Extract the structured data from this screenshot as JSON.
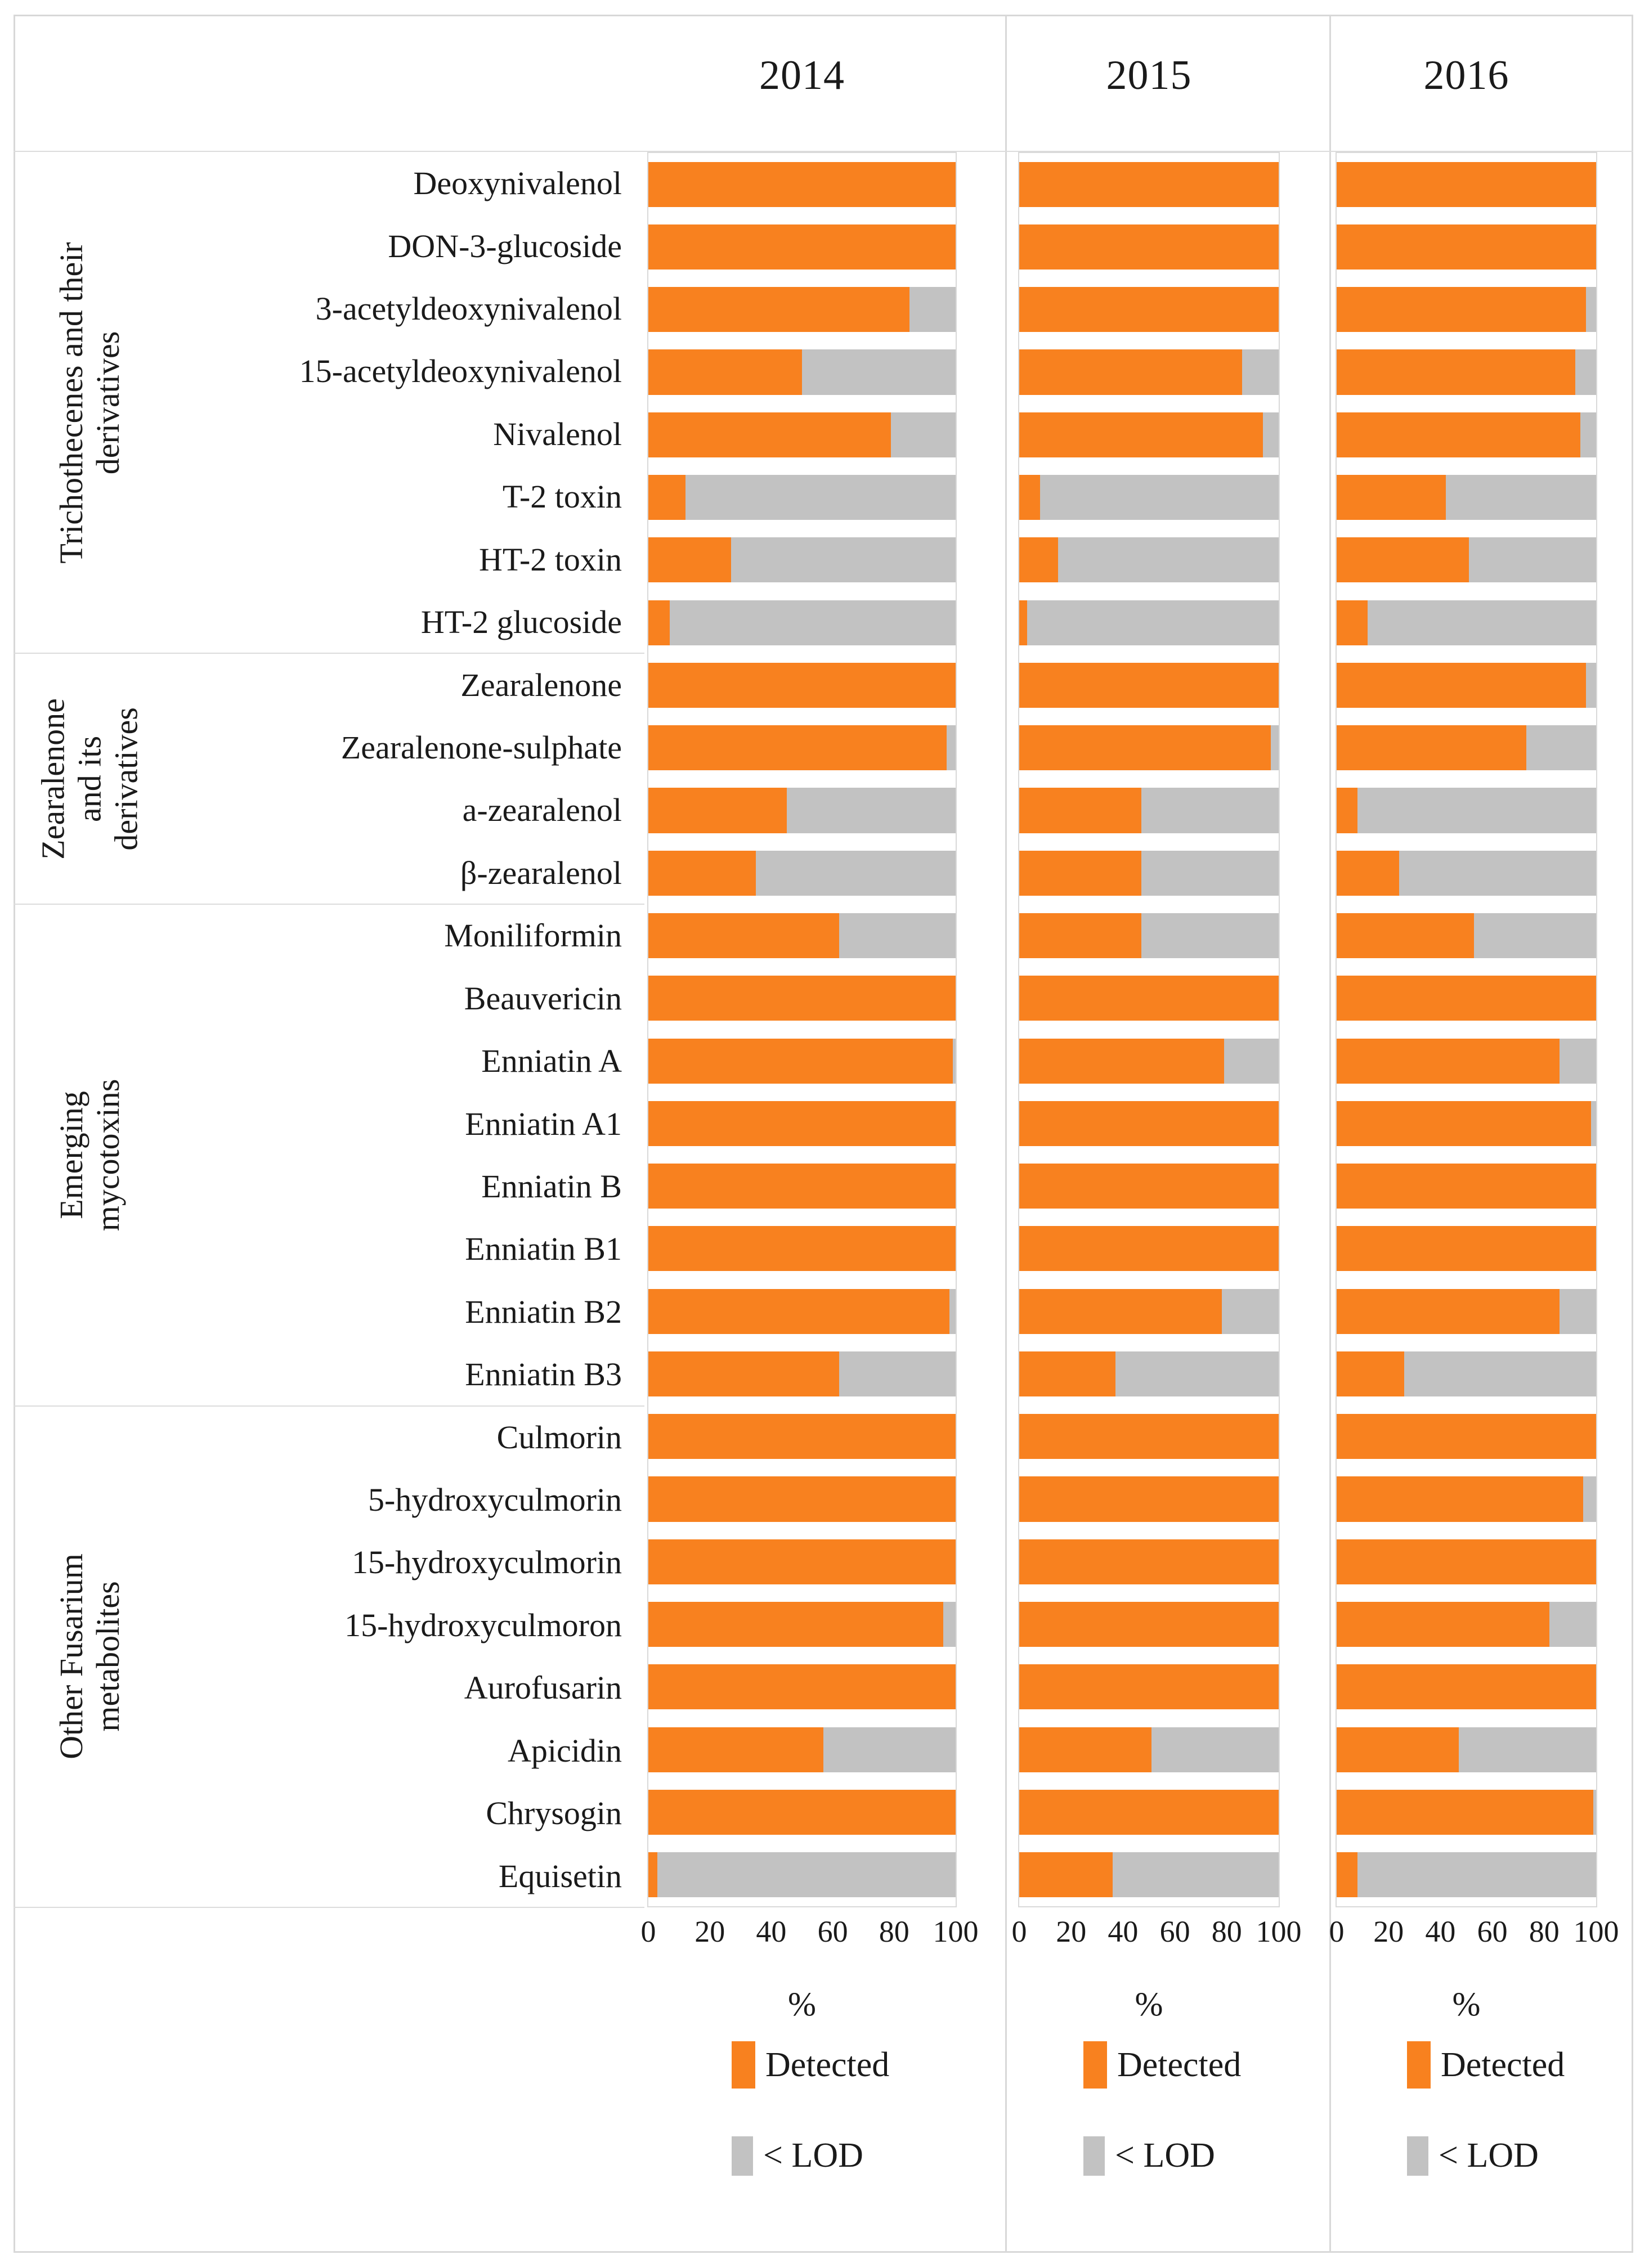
{
  "header": {
    "years": [
      "2014",
      "2015",
      "2016"
    ]
  },
  "chart_data": {
    "type": "bar",
    "orientation": "horizontal",
    "stacked": true,
    "row_total": 100,
    "xlabel": "%",
    "xlim": [
      0,
      100
    ],
    "xticks": [
      0,
      20,
      40,
      60,
      80,
      100
    ],
    "grid": false,
    "legend_position": "below-each-panel",
    "legend": [
      {
        "label": "Detected",
        "color": "#F8811F"
      },
      {
        "label": "< LOD",
        "color": "#C2C2C2"
      }
    ],
    "groups": [
      {
        "label": "Trichothecenes and their\nderivatives",
        "span": 8
      },
      {
        "label": "Zearalenone\nand its\nderivatives",
        "span": 4
      },
      {
        "label": "Emerging\nmycotoxins",
        "span": 8
      },
      {
        "label": "Other Fusarium\nmetabolites",
        "span": 8
      }
    ],
    "categories": [
      "Deoxynivalenol",
      "DON-3-glucoside",
      "3-acetyldeoxynivalenol",
      "15-acetyldeoxynivalenol",
      "Nivalenol",
      "T-2 toxin",
      "HT-2 toxin",
      "HT-2 glucoside",
      "Zearalenone",
      "Zearalenone-sulphate",
      "a-zearalenol",
      "β-zearalenol",
      "Moniliformin",
      "Beauvericin",
      "Enniatin A",
      "Enniatin A1",
      "Enniatin B",
      "Enniatin B1",
      "Enniatin B2",
      "Enniatin B3",
      "Culmorin",
      "5-hydroxyculmorin",
      "15-hydroxyculmorin",
      "15-hydroxyculmoron",
      "Aurofusarin",
      "Apicidin",
      "Chrysogin",
      "Equisetin"
    ],
    "series": [
      {
        "name": "2014",
        "detected_pct": [
          100,
          100,
          85,
          50,
          79,
          12,
          27,
          7,
          100,
          97,
          45,
          35,
          62,
          100,
          99,
          100,
          100,
          100,
          98,
          62,
          100,
          100,
          100,
          96,
          100,
          57,
          100,
          3
        ]
      },
      {
        "name": "2015",
        "detected_pct": [
          100,
          100,
          100,
          86,
          94,
          8,
          15,
          3,
          100,
          97,
          47,
          47,
          47,
          100,
          79,
          100,
          100,
          100,
          78,
          37,
          100,
          100,
          100,
          100,
          100,
          51,
          100,
          36
        ]
      },
      {
        "name": "2016",
        "detected_pct": [
          100,
          100,
          96,
          92,
          94,
          42,
          51,
          12,
          96,
          73,
          8,
          24,
          53,
          100,
          86,
          98,
          100,
          100,
          86,
          26,
          100,
          95,
          100,
          82,
          100,
          47,
          99,
          8
        ]
      }
    ]
  }
}
